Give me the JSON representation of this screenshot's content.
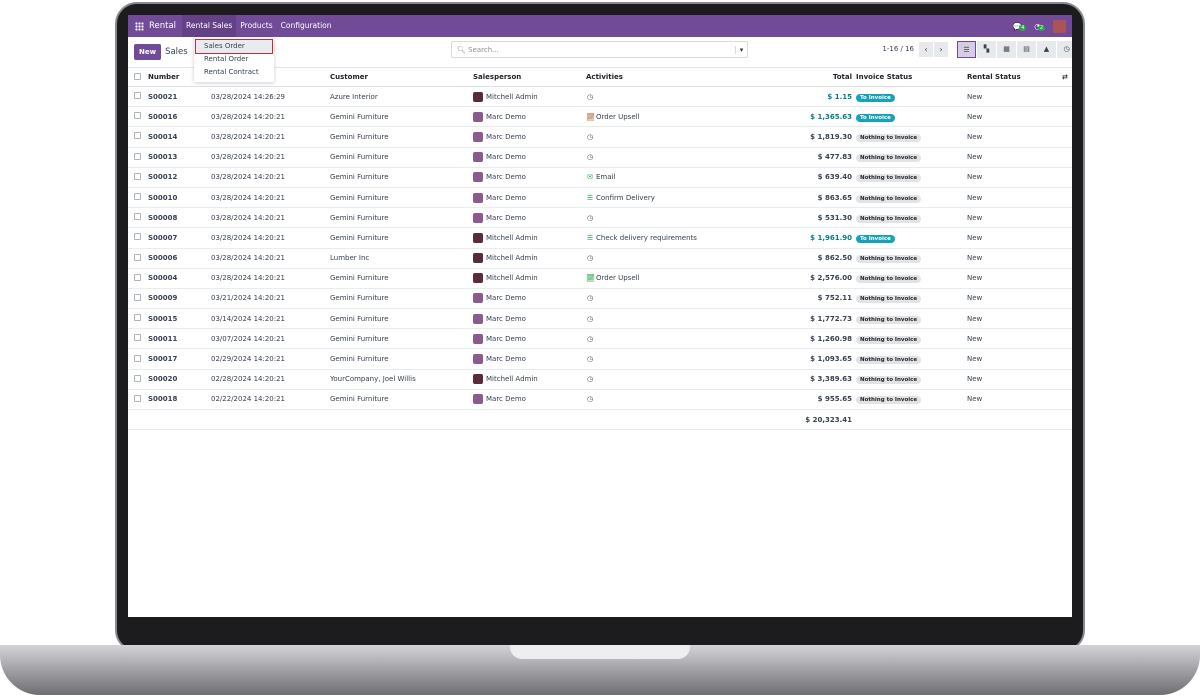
{
  "topbar": {
    "brand": "Rental",
    "menus": [
      "Rental Sales",
      "Products",
      "Configuration"
    ],
    "messages_count": "4",
    "activities_count": "2"
  },
  "control": {
    "new_label": "New",
    "title": "Sales",
    "search_placeholder": "Search...",
    "pager": "1-16 / 16"
  },
  "dropdown": [
    "Sales Order",
    "Rental Order",
    "Rental Contract"
  ],
  "columns": {
    "number": "Number",
    "customer": "Customer",
    "salesperson": "Salesperson",
    "activities": "Activities",
    "total": "Total",
    "invoice_status": "Invoice Status",
    "rental_status": "Rental Status"
  },
  "colors": {
    "brand": "#714b98",
    "to_invoice": "#17a2b8"
  },
  "rows": [
    {
      "number": "S00021",
      "date": "03/28/2024 14:26:29",
      "customer": "Azure Interior",
      "salesperson": "Mitchell Admin",
      "activity": "",
      "activity_icon": "clock-icon",
      "total": "$ 1.15",
      "invoice": "To Invoice",
      "rental": "New"
    },
    {
      "number": "S00016",
      "date": "03/28/2024 14:20:21",
      "customer": "Gemini Furniture",
      "salesperson": "Marc Demo",
      "activity": "Order Upsell",
      "activity_icon": "upsell-icon",
      "total": "$ 1,365.63",
      "invoice": "To Invoice",
      "rental": "New"
    },
    {
      "number": "S00014",
      "date": "03/28/2024 14:20:21",
      "customer": "Gemini Furniture",
      "salesperson": "Marc Demo",
      "activity": "",
      "activity_icon": "clock-icon",
      "total": "$ 1,819.30",
      "invoice": "Nothing to Invoice",
      "rental": "New"
    },
    {
      "number": "S00013",
      "date": "03/28/2024 14:20:21",
      "customer": "Gemini Furniture",
      "salesperson": "Marc Demo",
      "activity": "",
      "activity_icon": "clock-icon",
      "total": "$ 477.83",
      "invoice": "Nothing to Invoice",
      "rental": "New"
    },
    {
      "number": "S00012",
      "date": "03/28/2024 14:20:21",
      "customer": "Gemini Furniture",
      "salesperson": "Marc Demo",
      "activity": "Email",
      "activity_icon": "email-icon",
      "total": "$ 639.40",
      "invoice": "Nothing to Invoice",
      "rental": "New"
    },
    {
      "number": "S00010",
      "date": "03/28/2024 14:20:21",
      "customer": "Gemini Furniture",
      "salesperson": "Marc Demo",
      "activity": "Confirm Delivery",
      "activity_icon": "todo-icon",
      "total": "$ 863.65",
      "invoice": "Nothing to Invoice",
      "rental": "New"
    },
    {
      "number": "S00008",
      "date": "03/28/2024 14:20:21",
      "customer": "Gemini Furniture",
      "salesperson": "Marc Demo",
      "activity": "",
      "activity_icon": "clock-icon",
      "total": "$ 531.30",
      "invoice": "Nothing to Invoice",
      "rental": "New"
    },
    {
      "number": "S00007",
      "date": "03/28/2024 14:20:21",
      "customer": "Gemini Furniture",
      "salesperson": "Mitchell Admin",
      "activity": "Check delivery requirements",
      "activity_icon": "todo-icon",
      "total": "$ 1,961.90",
      "invoice": "To Invoice",
      "rental": "New"
    },
    {
      "number": "S00006",
      "date": "03/28/2024 14:20:21",
      "customer": "Lumber Inc",
      "salesperson": "Mitchell Admin",
      "activity": "",
      "activity_icon": "clock-icon",
      "total": "$ 862.50",
      "invoice": "Nothing to Invoice",
      "rental": "New"
    },
    {
      "number": "S00004",
      "date": "03/28/2024 14:20:21",
      "customer": "Gemini Furniture",
      "salesperson": "Mitchell Admin",
      "activity": "Order Upsell",
      "activity_icon": "upsell-icon-green",
      "total": "$ 2,576.00",
      "invoice": "Nothing to Invoice",
      "rental": "New"
    },
    {
      "number": "S00009",
      "date": "03/21/2024 14:20:21",
      "customer": "Gemini Furniture",
      "salesperson": "Marc Demo",
      "activity": "",
      "activity_icon": "clock-icon",
      "total": "$ 752.11",
      "invoice": "Nothing to Invoice",
      "rental": "New"
    },
    {
      "number": "S00015",
      "date": "03/14/2024 14:20:21",
      "customer": "Gemini Furniture",
      "salesperson": "Marc Demo",
      "activity": "",
      "activity_icon": "clock-icon",
      "total": "$ 1,772.73",
      "invoice": "Nothing to Invoice",
      "rental": "New"
    },
    {
      "number": "S00011",
      "date": "03/07/2024 14:20:21",
      "customer": "Gemini Furniture",
      "salesperson": "Marc Demo",
      "activity": "",
      "activity_icon": "clock-icon",
      "total": "$ 1,260.98",
      "invoice": "Nothing to Invoice",
      "rental": "New"
    },
    {
      "number": "S00017",
      "date": "02/29/2024 14:20:21",
      "customer": "Gemini Furniture",
      "salesperson": "Marc Demo",
      "activity": "",
      "activity_icon": "clock-icon",
      "total": "$ 1,093.65",
      "invoice": "Nothing to Invoice",
      "rental": "New"
    },
    {
      "number": "S00020",
      "date": "02/28/2024 14:20:21",
      "customer": "YourCompany, Joel Willis",
      "salesperson": "Mitchell Admin",
      "activity": "",
      "activity_icon": "clock-icon",
      "total": "$ 3,389.63",
      "invoice": "Nothing to Invoice",
      "rental": "New"
    },
    {
      "number": "S00018",
      "date": "02/22/2024 14:20:21",
      "customer": "Gemini Furniture",
      "salesperson": "Marc Demo",
      "activity": "",
      "activity_icon": "clock-icon",
      "total": "$ 955.65",
      "invoice": "Nothing to Invoice",
      "rental": "New"
    }
  ],
  "footer_total": "$ 20,323.41"
}
